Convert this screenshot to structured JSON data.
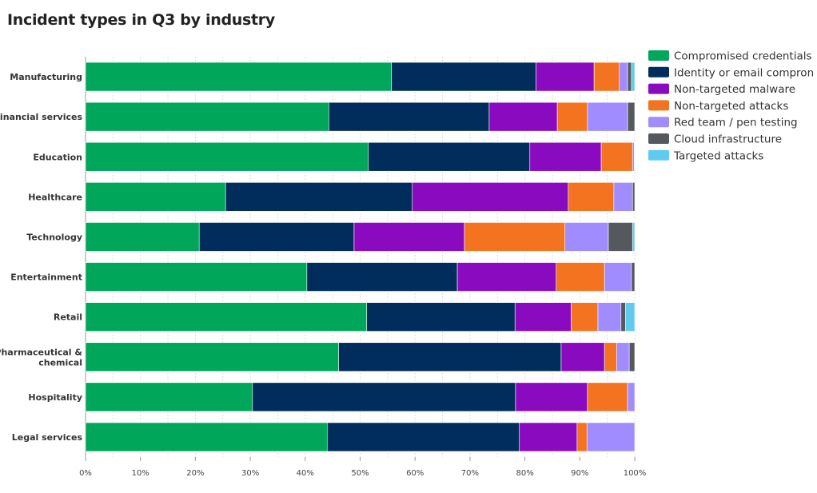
{
  "chart_data": {
    "type": "bar",
    "orientation": "horizontal",
    "stacked": true,
    "title": "Incident types in Q3 by industry",
    "xlabel": "",
    "ylabel": "",
    "xlim": [
      0,
      100
    ],
    "x_ticks": [
      "0%",
      "10%",
      "20%",
      "30%",
      "40%",
      "50%",
      "60%",
      "70%",
      "80%",
      "90%",
      "100%"
    ],
    "grid": true,
    "legend_position": "right",
    "categories": [
      "Manufacturing",
      "Financial services",
      "Education",
      "Healthcare",
      "Technology",
      "Entertainment",
      "Retail",
      "Pharmaceutical & chemical",
      "Hospitality",
      "Legal services"
    ],
    "series": [
      {
        "name": "Compromised credentials",
        "color": "#00a65a",
        "values": [
          55.7,
          44.3,
          51.5,
          25.5,
          20.7,
          40.3,
          51.2,
          46.1,
          30.4,
          44.0
        ]
      },
      {
        "name": "Identity or email compron",
        "color": "#002d5c",
        "values": [
          26.3,
          29.2,
          29.4,
          34.0,
          28.2,
          27.4,
          27.0,
          40.5,
          47.9,
          35.0
        ]
      },
      {
        "name": "Non-targeted malware",
        "color": "#8a0bbf",
        "values": [
          10.6,
          12.4,
          13.0,
          28.4,
          20.1,
          18.0,
          10.2,
          7.9,
          13.1,
          10.5
        ]
      },
      {
        "name": "Non-targeted attacks",
        "color": "#f47320",
        "values": [
          4.6,
          5.5,
          5.7,
          8.3,
          18.3,
          8.8,
          4.9,
          2.2,
          7.3,
          1.8
        ]
      },
      {
        "name": "Red team / pen testing",
        "color": "#a08cff",
        "values": [
          1.5,
          7.3,
          0.3,
          3.4,
          7.9,
          4.9,
          4.2,
          2.3,
          1.3,
          8.7
        ]
      },
      {
        "name": "Cloud infrastructure",
        "color": "#55585c",
        "values": [
          0.7,
          1.3,
          0.0,
          0.4,
          4.4,
          0.6,
          0.8,
          1.0,
          0.0,
          0.0
        ]
      },
      {
        "name": "Targeted attacks",
        "color": "#5fcbf0",
        "values": [
          0.6,
          0.0,
          0.1,
          0.0,
          0.4,
          0.0,
          1.7,
          0.0,
          0.0,
          0.0
        ]
      }
    ]
  }
}
